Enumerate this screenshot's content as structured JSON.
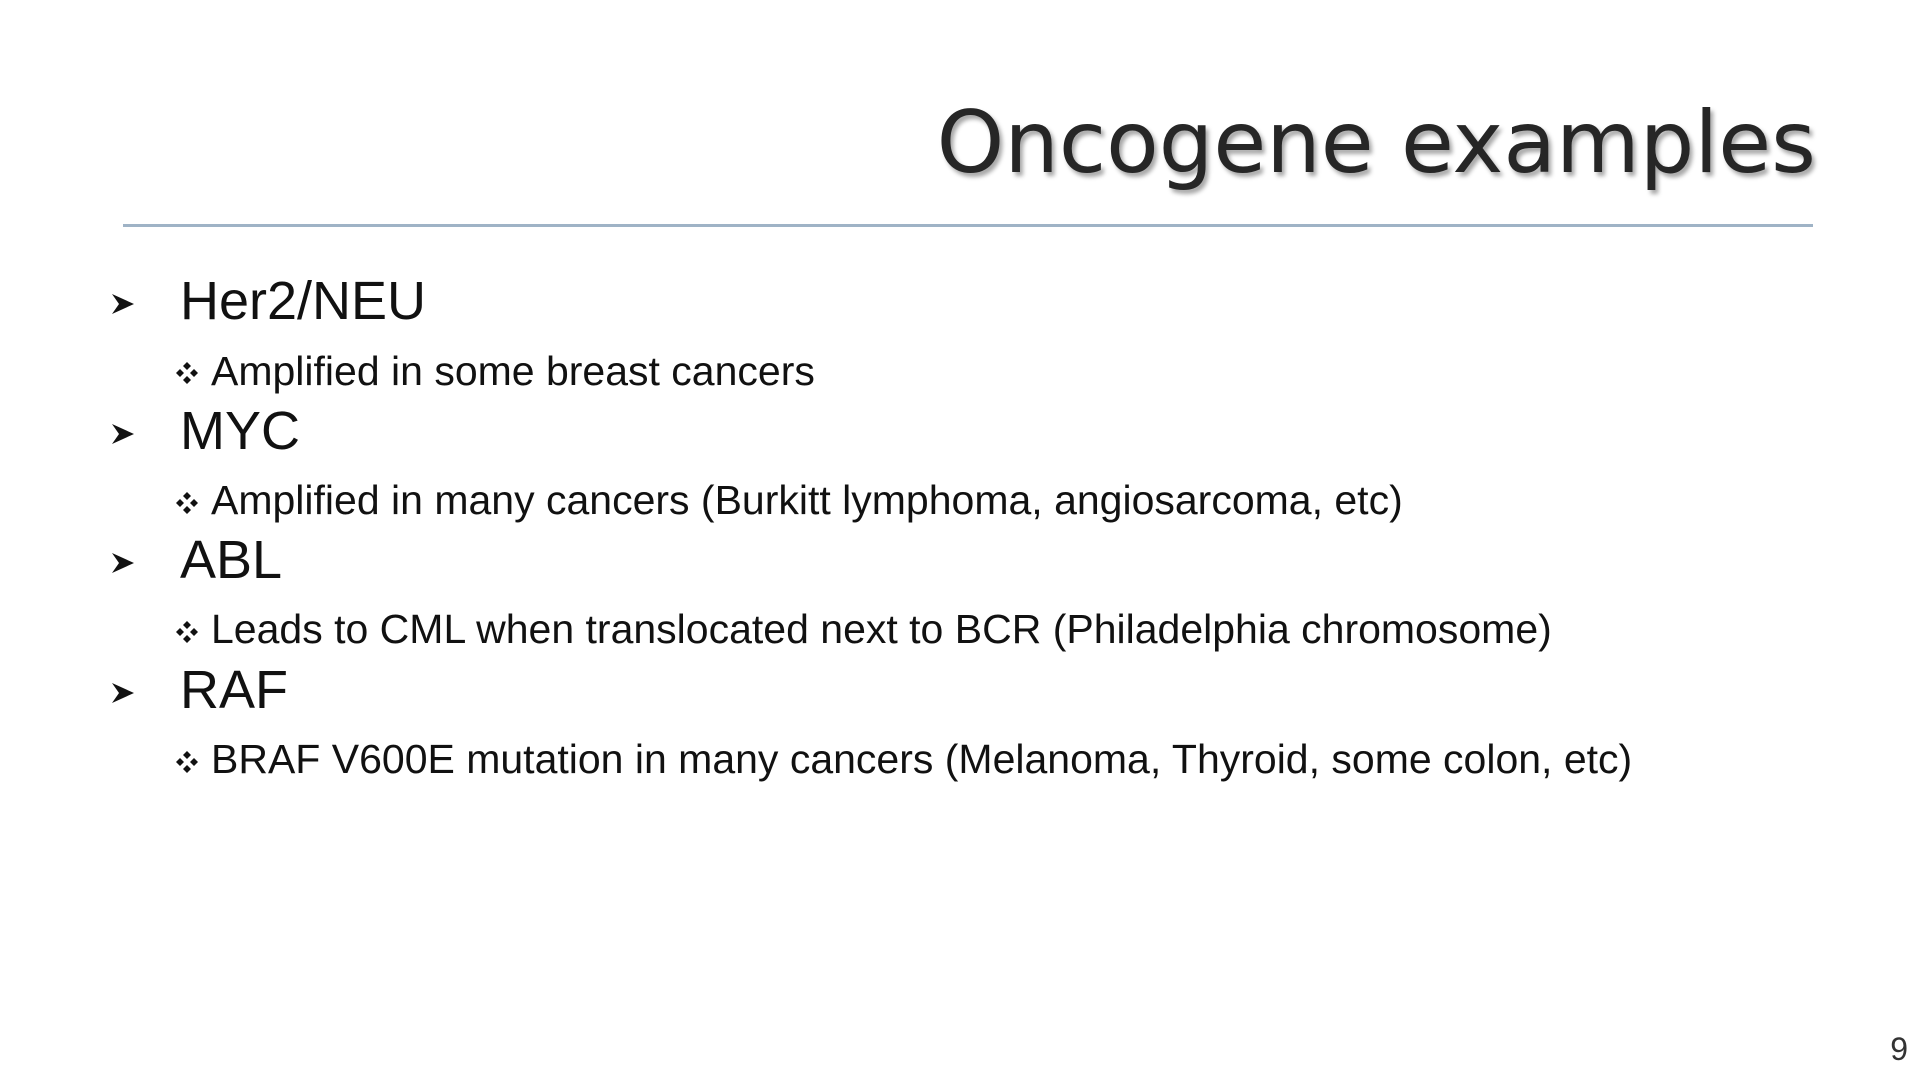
{
  "slide": {
    "title": "Oncogene examples",
    "page_number": "9",
    "items": [
      {
        "heading": "Her2/NEU",
        "detail": "Amplified in some breast cancers"
      },
      {
        "heading": "MYC",
        "detail": "Amplified in many cancers (Burkitt lymphoma, angiosarcoma, etc)"
      },
      {
        "heading": "ABL",
        "detail": "Leads to CML when translocated next to BCR (Philadelphia chromosome)"
      },
      {
        "heading": "RAF",
        "detail": "BRAF V600E mutation in many cancers (Melanoma, Thyroid, some colon, etc)"
      }
    ]
  },
  "icons": {
    "level1": "arrowhead-bullet-icon",
    "level2": "four-diamond-bullet-icon"
  },
  "colors": {
    "title": "#262626",
    "rule": "#9fb3c6",
    "text": "#111111"
  }
}
